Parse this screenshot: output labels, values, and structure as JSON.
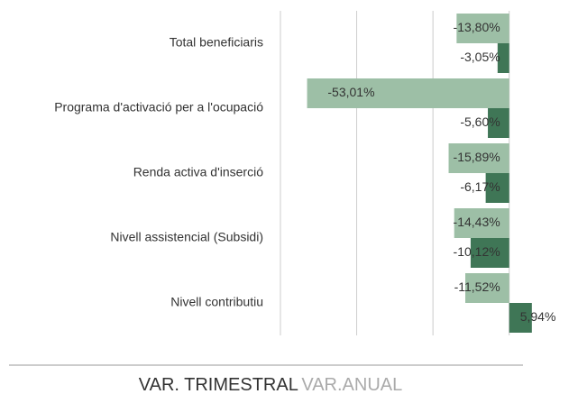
{
  "chart_data": {
    "type": "barh",
    "categories": [
      "Total beneficiaris",
      "Programa d'activació per a l'ocupació",
      "Renda activa d'inserció",
      "Nivell assistencial (Subsidi)",
      "Nivell contributiu"
    ],
    "series": [
      {
        "name": "VAR. TRIMESTRAL",
        "color": "#3f7656",
        "values": [
          -3.05,
          -5.6,
          -6.17,
          -10.12,
          5.94
        ],
        "value_labels": [
          "-3,05%",
          "-5,60%",
          "-6,17%",
          "-10,12%",
          "5,94%"
        ]
      },
      {
        "name": "VAR.ANUAL",
        "color": "#9dbfa6",
        "values": [
          -13.8,
          -53.01,
          -15.89,
          -14.43,
          -11.52
        ],
        "value_labels": [
          "-13,80%",
          "-53,01%",
          "-15,89%",
          "-14,43%",
          "-11,52%"
        ]
      }
    ],
    "xlim": [
      -60,
      10
    ],
    "xticks": [
      -60,
      -40,
      -20,
      0
    ],
    "grid": true
  }
}
